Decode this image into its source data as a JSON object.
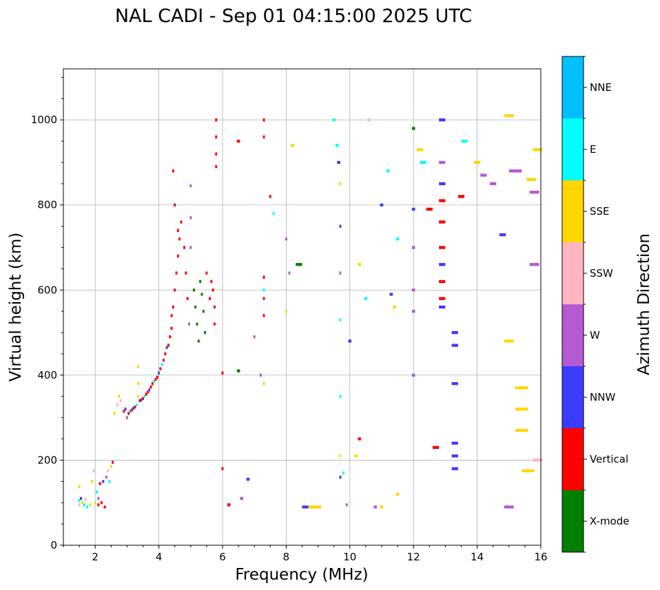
{
  "chart_data": {
    "type": "scatter",
    "title": "NAL CADI - Sep 01 04:15:00 2025 UTC",
    "xlabel": "Frequency (MHz)",
    "ylabel": "Virtual height (km)",
    "xlim": [
      1,
      16
    ],
    "ylim": [
      0,
      1120
    ],
    "x_ticks": [
      2,
      4,
      6,
      8,
      10,
      12,
      14,
      16
    ],
    "y_ticks": [
      0,
      200,
      400,
      600,
      800,
      1000
    ],
    "x_tick_labels": [
      "2",
      "4",
      "6",
      "8",
      "10",
      "12",
      "14",
      "16"
    ],
    "y_tick_labels": [
      "0",
      "200",
      "400",
      "600",
      "800",
      "1000"
    ],
    "grid": true,
    "colorbar": {
      "label": "Azimuth Direction",
      "categories": [
        {
          "name": "X-mode",
          "color": "#008000"
        },
        {
          "name": "Vertical",
          "color": "#ff0000"
        },
        {
          "name": "NNW",
          "color": "#3c3cff"
        },
        {
          "name": "W",
          "color": "#b45ad2"
        },
        {
          "name": "SSW",
          "color": "#ffb6c1"
        },
        {
          "name": "SSE",
          "color": "#ffd700"
        },
        {
          "name": "E",
          "color": "#00ffff"
        },
        {
          "name": "NNE",
          "color": "#00bfff"
        }
      ]
    },
    "trace_note": "approximate ionogram echoes; each point is [frequency MHz, height km, category index, length MHz]",
    "points": [
      [
        1.5,
        105,
        6,
        0.05
      ],
      [
        1.5,
        95,
        4,
        0.05
      ],
      [
        1.5,
        138,
        5,
        0.05
      ],
      [
        1.55,
        110,
        2,
        0.05
      ],
      [
        1.6,
        100,
        5,
        0.05
      ],
      [
        1.65,
        95,
        6,
        0.05
      ],
      [
        1.7,
        108,
        4,
        0.05
      ],
      [
        1.75,
        90,
        6,
        0.05
      ],
      [
        1.85,
        95,
        5,
        0.05
      ],
      [
        1.9,
        150,
        5,
        0.05
      ],
      [
        1.95,
        175,
        4,
        0.05
      ],
      [
        2.0,
        100,
        5,
        0.05
      ],
      [
        2.05,
        125,
        6,
        0.05
      ],
      [
        2.1,
        95,
        1,
        0.05
      ],
      [
        2.1,
        110,
        3,
        0.05
      ],
      [
        2.15,
        145,
        1,
        0.05
      ],
      [
        2.2,
        100,
        1,
        0.05
      ],
      [
        2.25,
        150,
        2,
        0.05
      ],
      [
        2.3,
        90,
        1,
        0.05
      ],
      [
        2.35,
        160,
        3,
        0.05
      ],
      [
        2.4,
        175,
        4,
        0.05
      ],
      [
        2.45,
        150,
        6,
        0.05
      ],
      [
        2.5,
        185,
        5,
        0.05
      ],
      [
        2.55,
        195,
        1,
        0.05
      ],
      [
        2.6,
        310,
        5,
        0.05
      ],
      [
        2.7,
        330,
        4,
        0.05
      ],
      [
        2.75,
        350,
        5,
        0.05
      ],
      [
        2.8,
        340,
        4,
        0.05
      ],
      [
        2.9,
        315,
        1,
        0.05
      ],
      [
        2.95,
        320,
        2,
        0.05
      ],
      [
        3.0,
        300,
        3,
        0.05
      ],
      [
        3.05,
        310,
        1,
        0.05
      ],
      [
        3.1,
        315,
        7,
        0.05
      ],
      [
        3.15,
        318,
        1,
        0.05
      ],
      [
        3.2,
        322,
        2,
        0.05
      ],
      [
        3.25,
        325,
        1,
        0.05
      ],
      [
        3.3,
        330,
        6,
        0.05
      ],
      [
        3.35,
        420,
        5,
        0.05
      ],
      [
        3.35,
        380,
        5,
        0.05
      ],
      [
        3.35,
        350,
        5,
        0.05
      ],
      [
        3.4,
        340,
        1,
        0.05
      ],
      [
        3.45,
        342,
        2,
        0.05
      ],
      [
        3.5,
        345,
        1,
        0.05
      ],
      [
        3.55,
        350,
        6,
        0.05
      ],
      [
        3.6,
        355,
        1,
        0.05
      ],
      [
        3.65,
        360,
        1,
        0.05
      ],
      [
        3.7,
        365,
        2,
        0.05
      ],
      [
        3.75,
        372,
        1,
        0.05
      ],
      [
        3.8,
        380,
        1,
        0.05
      ],
      [
        3.85,
        385,
        6,
        0.05
      ],
      [
        3.9,
        390,
        1,
        0.05
      ],
      [
        3.95,
        395,
        1,
        0.05
      ],
      [
        4.0,
        405,
        2,
        0.05
      ],
      [
        4.05,
        415,
        1,
        0.05
      ],
      [
        4.1,
        425,
        6,
        0.05
      ],
      [
        4.15,
        435,
        1,
        0.05
      ],
      [
        4.2,
        450,
        1,
        0.05
      ],
      [
        4.25,
        465,
        2,
        0.05
      ],
      [
        4.3,
        470,
        1,
        0.05
      ],
      [
        4.35,
        490,
        1,
        0.05
      ],
      [
        4.4,
        510,
        1,
        0.05
      ],
      [
        4.4,
        540,
        1,
        0.05
      ],
      [
        4.45,
        560,
        1,
        0.05
      ],
      [
        4.5,
        600,
        1,
        0.05
      ],
      [
        4.55,
        640,
        1,
        0.05
      ],
      [
        4.6,
        680,
        1,
        0.05
      ],
      [
        4.65,
        720,
        1,
        0.05
      ],
      [
        4.7,
        760,
        1,
        0.05
      ],
      [
        4.45,
        880,
        1,
        0.05
      ],
      [
        4.5,
        800,
        1,
        0.05
      ],
      [
        4.6,
        740,
        1,
        0.05
      ],
      [
        4.8,
        700,
        1,
        0.05
      ],
      [
        4.85,
        640,
        1,
        0.05
      ],
      [
        4.9,
        580,
        1,
        0.05
      ],
      [
        4.95,
        520,
        3,
        0.05
      ],
      [
        5.0,
        770,
        3,
        0.05
      ],
      [
        5.0,
        700,
        3,
        0.05
      ],
      [
        5.0,
        845,
        3,
        0.05
      ],
      [
        5.1,
        600,
        0,
        0.05
      ],
      [
        5.15,
        560,
        0,
        0.05
      ],
      [
        5.2,
        520,
        0,
        0.05
      ],
      [
        5.25,
        480,
        0,
        0.05
      ],
      [
        5.3,
        620,
        0,
        0.05
      ],
      [
        5.35,
        590,
        0,
        0.05
      ],
      [
        5.4,
        550,
        0,
        0.05
      ],
      [
        5.45,
        500,
        0,
        0.05
      ],
      [
        5.5,
        640,
        1,
        0.05
      ],
      [
        5.6,
        580,
        1,
        0.05
      ],
      [
        5.65,
        620,
        1,
        0.05
      ],
      [
        5.7,
        600,
        1,
        0.05
      ],
      [
        5.75,
        560,
        1,
        0.05
      ],
      [
        5.75,
        520,
        1,
        0.05
      ],
      [
        5.8,
        1000,
        1,
        0.05
      ],
      [
        5.8,
        960,
        1,
        0.05
      ],
      [
        5.8,
        920,
        1,
        0.05
      ],
      [
        5.8,
        890,
        1,
        0.05
      ],
      [
        6.0,
        180,
        1,
        0.05
      ],
      [
        6.0,
        405,
        1,
        0.05
      ],
      [
        6.2,
        95,
        1,
        0.1
      ],
      [
        6.5,
        410,
        0,
        0.1
      ],
      [
        6.5,
        950,
        1,
        0.1
      ],
      [
        6.6,
        110,
        3,
        0.1
      ],
      [
        6.8,
        155,
        2,
        0.1
      ],
      [
        7.0,
        490,
        3,
        0.05
      ],
      [
        7.2,
        400,
        3,
        0.05
      ],
      [
        7.3,
        630,
        1,
        0.05
      ],
      [
        7.3,
        600,
        6,
        0.05
      ],
      [
        7.3,
        580,
        1,
        0.05
      ],
      [
        7.3,
        540,
        1,
        0.05
      ],
      [
        7.3,
        1000,
        1,
        0.05
      ],
      [
        7.3,
        960,
        1,
        0.05
      ],
      [
        7.3,
        380,
        5,
        0.05
      ],
      [
        7.5,
        820,
        1,
        0.05
      ],
      [
        7.6,
        780,
        6,
        0.05
      ],
      [
        8.0,
        720,
        3,
        0.05
      ],
      [
        8.0,
        550,
        5,
        0.05
      ],
      [
        8.1,
        640,
        3,
        0.05
      ],
      [
        8.2,
        940,
        5,
        0.1
      ],
      [
        8.4,
        660,
        0,
        0.2
      ],
      [
        8.6,
        90,
        2,
        0.2
      ],
      [
        8.8,
        90,
        5,
        0.2
      ],
      [
        9.0,
        90,
        5,
        0.2
      ],
      [
        9.5,
        1000,
        6,
        0.1
      ],
      [
        9.6,
        940,
        6,
        0.1
      ],
      [
        9.65,
        900,
        2,
        0.1
      ],
      [
        9.7,
        850,
        5,
        0.05
      ],
      [
        9.7,
        750,
        2,
        0.05
      ],
      [
        9.7,
        640,
        3,
        0.05
      ],
      [
        9.7,
        530,
        6,
        0.05
      ],
      [
        9.7,
        350,
        6,
        0.05
      ],
      [
        9.7,
        210,
        5,
        0.05
      ],
      [
        9.7,
        160,
        2,
        0.05
      ],
      [
        9.8,
        170,
        6,
        0.05
      ],
      [
        9.9,
        95,
        3,
        0.05
      ],
      [
        10.0,
        480,
        2,
        0.1
      ],
      [
        10.2,
        210,
        5,
        0.1
      ],
      [
        10.3,
        250,
        1,
        0.1
      ],
      [
        10.3,
        660,
        5,
        0.1
      ],
      [
        10.5,
        580,
        6,
        0.1
      ],
      [
        10.6,
        1000,
        4,
        0.1
      ],
      [
        10.8,
        90,
        3,
        0.1
      ],
      [
        11.0,
        800,
        2,
        0.1
      ],
      [
        11.0,
        90,
        5,
        0.1
      ],
      [
        11.2,
        880,
        6,
        0.1
      ],
      [
        11.3,
        590,
        2,
        0.1
      ],
      [
        11.4,
        560,
        5,
        0.1
      ],
      [
        11.5,
        120,
        5,
        0.1
      ],
      [
        11.5,
        720,
        6,
        0.1
      ],
      [
        12.0,
        980,
        0,
        0.1
      ],
      [
        12.0,
        790,
        2,
        0.1
      ],
      [
        12.0,
        700,
        3,
        0.1
      ],
      [
        12.0,
        600,
        3,
        0.1
      ],
      [
        12.0,
        550,
        3,
        0.1
      ],
      [
        12.0,
        400,
        3,
        0.1
      ],
      [
        12.2,
        930,
        5,
        0.2
      ],
      [
        12.3,
        900,
        6,
        0.2
      ],
      [
        12.5,
        790,
        1,
        0.2
      ],
      [
        12.7,
        230,
        1,
        0.2
      ],
      [
        12.9,
        1000,
        2,
        0.2
      ],
      [
        12.9,
        900,
        3,
        0.2
      ],
      [
        12.9,
        850,
        2,
        0.2
      ],
      [
        12.9,
        810,
        1,
        0.2
      ],
      [
        12.9,
        760,
        1,
        0.2
      ],
      [
        12.9,
        700,
        1,
        0.2
      ],
      [
        12.9,
        660,
        2,
        0.2
      ],
      [
        12.9,
        620,
        1,
        0.2
      ],
      [
        12.9,
        580,
        1,
        0.2
      ],
      [
        12.9,
        560,
        2,
        0.2
      ],
      [
        13.3,
        500,
        2,
        0.2
      ],
      [
        13.3,
        470,
        2,
        0.2
      ],
      [
        13.3,
        380,
        2,
        0.2
      ],
      [
        13.3,
        240,
        2,
        0.2
      ],
      [
        13.3,
        210,
        2,
        0.2
      ],
      [
        13.3,
        180,
        2,
        0.2
      ],
      [
        13.5,
        820,
        1,
        0.2
      ],
      [
        13.6,
        950,
        6,
        0.2
      ],
      [
        14.0,
        900,
        5,
        0.2
      ],
      [
        14.2,
        870,
        3,
        0.2
      ],
      [
        14.5,
        850,
        3,
        0.2
      ],
      [
        14.8,
        730,
        2,
        0.2
      ],
      [
        15.0,
        1010,
        5,
        0.3
      ],
      [
        15.0,
        480,
        5,
        0.3
      ],
      [
        15.0,
        90,
        3,
        0.3
      ],
      [
        15.2,
        880,
        3,
        0.4
      ],
      [
        15.4,
        370,
        5,
        0.4
      ],
      [
        15.4,
        320,
        5,
        0.4
      ],
      [
        15.4,
        270,
        5,
        0.4
      ],
      [
        15.6,
        175,
        5,
        0.4
      ],
      [
        15.7,
        860,
        5,
        0.3
      ],
      [
        15.8,
        830,
        3,
        0.3
      ],
      [
        15.8,
        660,
        3,
        0.3
      ],
      [
        15.9,
        200,
        4,
        0.3
      ],
      [
        15.9,
        930,
        5,
        0.3
      ]
    ]
  }
}
